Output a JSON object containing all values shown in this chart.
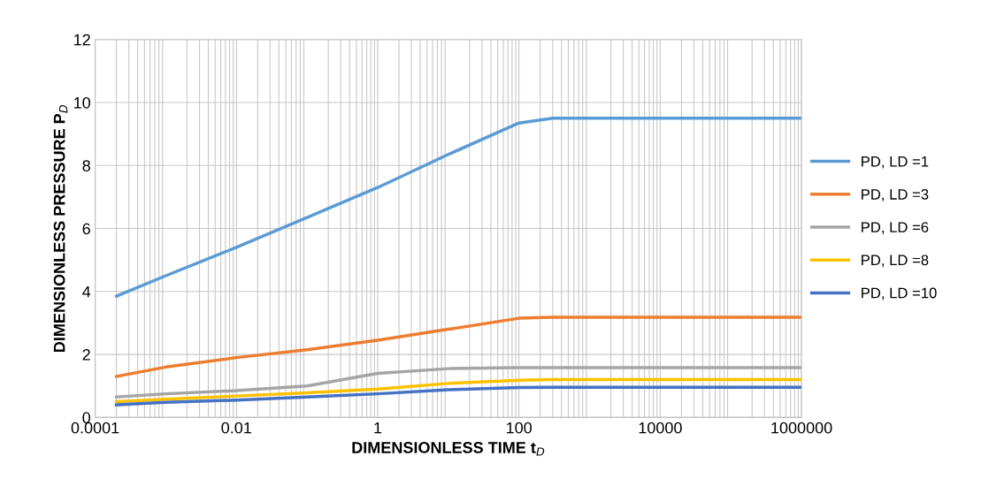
{
  "chart_data": {
    "type": "line",
    "xlabel": "DIMENSIONLESS TIME t$_{D}$",
    "ylabel": "DIMENSIONLESS PRESSURE P$_{D}$",
    "log": "x",
    "xlim": [
      0.0001,
      1000000
    ],
    "xticks": [
      0.0001,
      0.01,
      1,
      100,
      10000,
      1000000
    ],
    "ylim": [
      0,
      12
    ],
    "yticks": [
      0,
      2,
      4,
      6,
      8,
      10,
      12
    ],
    "grid": true,
    "legend": "right",
    "marker": "none",
    "line_style": "solid",
    "x": [
      0.0002,
      0.001,
      0.01,
      0.1,
      1,
      10,
      100,
      300,
      1000,
      10000,
      100000,
      1000000
    ],
    "series": [
      {
        "name": "PD, LD =1",
        "color": "#5b9bd5",
        "values": [
          3.85,
          4.5,
          5.4,
          6.35,
          7.3,
          8.35,
          9.35,
          9.5,
          9.5,
          9.5,
          9.5,
          9.5
        ]
      },
      {
        "name": "PD, LD =3",
        "color": "#ed7d31",
        "values": [
          1.3,
          1.6,
          1.9,
          2.15,
          2.45,
          2.8,
          3.15,
          3.18,
          3.18,
          3.18,
          3.18,
          3.18
        ]
      },
      {
        "name": "PD, LD =6",
        "color": "#a5a5a5",
        "values": [
          0.65,
          0.75,
          0.85,
          1.0,
          1.4,
          1.55,
          1.58,
          1.58,
          1.58,
          1.58,
          1.58,
          1.58
        ]
      },
      {
        "name": "PD, LD =8",
        "color": "#ffc000",
        "values": [
          0.5,
          0.58,
          0.68,
          0.78,
          0.9,
          1.08,
          1.18,
          1.2,
          1.2,
          1.2,
          1.2,
          1.2
        ]
      },
      {
        "name": "PD, LD =10",
        "color": "#4472c4",
        "values": [
          0.4,
          0.48,
          0.55,
          0.65,
          0.75,
          0.88,
          0.95,
          0.96,
          0.96,
          0.96,
          0.96,
          0.96
        ]
      }
    ]
  }
}
